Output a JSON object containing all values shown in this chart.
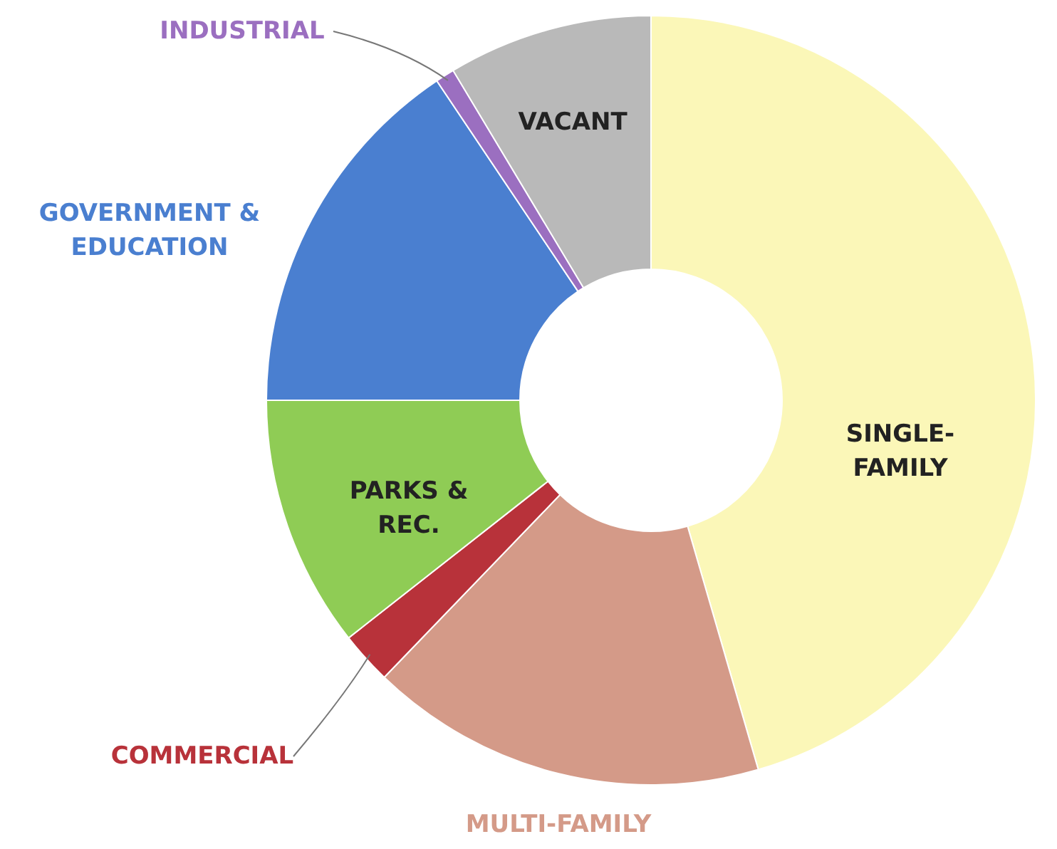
{
  "chart_data": {
    "type": "donut",
    "categories": [
      "SINGLE-FAMILY",
      "MULTI-FAMILY",
      "COMMERCIAL",
      "PARKS & REC.",
      "GOVERNMENT & EDUCATION",
      "INDUSTRIAL",
      "VACANT"
    ],
    "values": [
      45.5,
      16.7,
      2.2,
      10.6,
      15.6,
      0.8,
      8.6
    ],
    "colors": [
      "#fbf7b8",
      "#d49a88",
      "#b8323a",
      "#8fcc55",
      "#4a7fd0",
      "#9b6fc0",
      "#b9b9b9"
    ]
  }
}
